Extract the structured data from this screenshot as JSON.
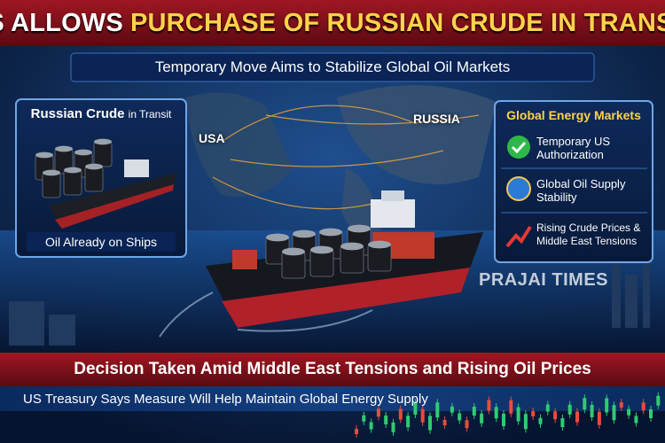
{
  "header": {
    "title": {
      "lead": "US ALLOWS",
      "main": "PURCHASE OF RUSSIAN CRUDE IN TRANSIT"
    },
    "subtitle": "Temporary Move Aims to Stabilize Global Oil Markets"
  },
  "left_panel": {
    "title": "Russian Crude",
    "title_suffix": "in Transit",
    "caption": "Oil Already on Ships"
  },
  "map_labels": [
    "USA",
    "RUSSIA"
  ],
  "right_panel": {
    "title": "Global Energy Markets",
    "items": [
      "Temporary US Authorization",
      "Global Oil Supply Stability",
      "Rising Crude Prices & Middle East Tensions"
    ]
  },
  "watermark": "PRAJAI TIMES",
  "footer": {
    "headline": "Decision Taken Amid Middle East Tensions and Rising Oil Prices",
    "subline": "US Treasury Says Measure Will Help Maintain Global Energy Supply"
  }
}
